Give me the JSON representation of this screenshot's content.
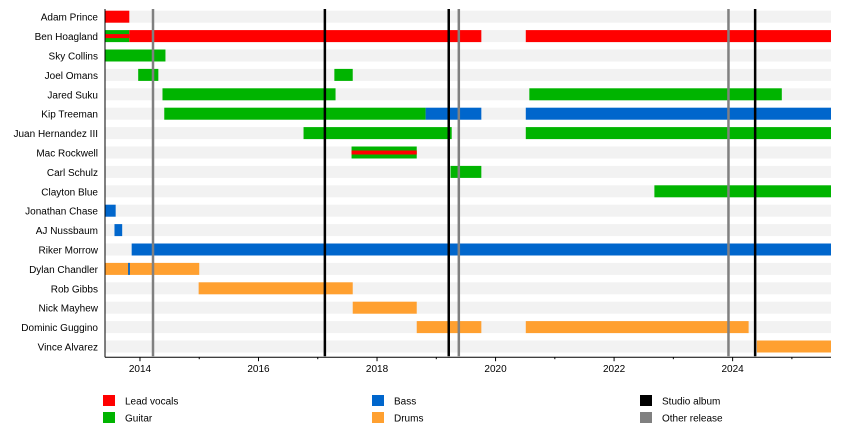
{
  "chart_data": {
    "type": "timeline",
    "title": "",
    "xlim": [
      2013.41,
      2025.66
    ],
    "x_ticks": [
      2014,
      2016,
      2018,
      2020,
      2022,
      2024
    ],
    "x_tick_labels": [
      "2014",
      "2016",
      "2018",
      "2020",
      "2022",
      "2024"
    ],
    "grid": false,
    "legend_placement": "bottom",
    "colors": {
      "Lead vocals": "#ff0000",
      "Guitar": "#00b400",
      "Bass": "#0066cc",
      "Drums": "#ffa030",
      "Studio album": "#000000",
      "Other release": "#808080"
    },
    "legend": [
      {
        "label": "Lead vocals",
        "role": "Lead vocals"
      },
      {
        "label": "Guitar",
        "role": "Guitar"
      },
      {
        "label": "Bass",
        "role": "Bass"
      },
      {
        "label": "Drums",
        "role": "Drums"
      },
      {
        "label": "Studio album",
        "role": "Studio album"
      },
      {
        "label": "Other release",
        "role": "Other release"
      }
    ],
    "members": [
      {
        "name": "Adam Prince",
        "bars": [
          {
            "role": "Lead vocals",
            "start": 2013.41,
            "end": 2013.82
          }
        ]
      },
      {
        "name": "Ben Hoagland",
        "bars": [
          {
            "role": "Guitar",
            "start": 2013.41,
            "end": 2013.82,
            "secondary": "Lead vocals"
          },
          {
            "role": "Lead vocals",
            "start": 2013.82,
            "end": 2019.76
          },
          {
            "role": "Lead vocals",
            "start": 2020.51,
            "end": 2025.66
          }
        ]
      },
      {
        "name": "Sky Collins",
        "bars": [
          {
            "role": "Guitar",
            "start": 2013.41,
            "end": 2014.43
          }
        ]
      },
      {
        "name": "Joel Omans",
        "bars": [
          {
            "role": "Guitar",
            "start": 2013.97,
            "end": 2014.31
          },
          {
            "role": "Guitar",
            "start": 2017.28,
            "end": 2017.59
          }
        ]
      },
      {
        "name": "Jared Suku",
        "bars": [
          {
            "role": "Guitar",
            "start": 2014.38,
            "end": 2017.3
          },
          {
            "role": "Guitar",
            "start": 2020.57,
            "end": 2024.83
          }
        ]
      },
      {
        "name": "Kip Treeman",
        "bars": [
          {
            "role": "Guitar",
            "start": 2014.41,
            "end": 2018.82
          },
          {
            "role": "Bass",
            "start": 2018.82,
            "end": 2019.76
          },
          {
            "role": "Bass",
            "start": 2020.51,
            "end": 2025.66
          }
        ]
      },
      {
        "name": "Juan Hernandez III",
        "bars": [
          {
            "role": "Guitar",
            "start": 2016.76,
            "end": 2019.26
          },
          {
            "role": "Guitar",
            "start": 2020.51,
            "end": 2025.66
          }
        ]
      },
      {
        "name": "Mac Rockwell",
        "bars": [
          {
            "role": "Guitar",
            "start": 2017.57,
            "end": 2018.67,
            "secondary": "Lead vocals"
          }
        ]
      },
      {
        "name": "Carl Schulz",
        "bars": [
          {
            "role": "Guitar",
            "start": 2019.24,
            "end": 2019.76
          }
        ]
      },
      {
        "name": "Clayton Blue",
        "bars": [
          {
            "role": "Guitar",
            "start": 2022.68,
            "end": 2025.66
          }
        ]
      },
      {
        "name": "Jonathan Chase",
        "bars": [
          {
            "role": "Bass",
            "start": 2013.41,
            "end": 2013.59
          }
        ]
      },
      {
        "name": "AJ Nussbaum",
        "bars": [
          {
            "role": "Bass",
            "start": 2013.57,
            "end": 2013.7
          }
        ]
      },
      {
        "name": "Riker Morrow",
        "bars": [
          {
            "role": "Bass",
            "start": 2013.86,
            "end": 2025.66
          }
        ]
      },
      {
        "name": "Dylan Chandler",
        "bars": [
          {
            "role": "Drums",
            "start": 2013.41,
            "end": 2015.0
          },
          {
            "role": "Bass",
            "start": 2013.8,
            "end": 2013.83
          }
        ]
      },
      {
        "name": "Rob Gibbs",
        "bars": [
          {
            "role": "Drums",
            "start": 2014.99,
            "end": 2017.59
          }
        ]
      },
      {
        "name": "Nick Mayhew",
        "bars": [
          {
            "role": "Drums",
            "start": 2017.59,
            "end": 2018.67
          }
        ]
      },
      {
        "name": "Dominic Guggino",
        "bars": [
          {
            "role": "Drums",
            "start": 2018.67,
            "end": 2019.76
          },
          {
            "role": "Drums",
            "start": 2020.51,
            "end": 2024.27
          }
        ]
      },
      {
        "name": "Vince Alvarez",
        "bars": [
          {
            "role": "Drums",
            "start": 2024.41,
            "end": 2025.66
          }
        ]
      }
    ],
    "releases": [
      {
        "type": "Other release",
        "date": 2014.22
      },
      {
        "type": "Studio album",
        "date": 2017.12
      },
      {
        "type": "Studio album",
        "date": 2019.21
      },
      {
        "type": "Other release",
        "date": 2019.38
      },
      {
        "type": "Other release",
        "date": 2023.93
      },
      {
        "type": "Studio album",
        "date": 2024.38
      }
    ]
  }
}
